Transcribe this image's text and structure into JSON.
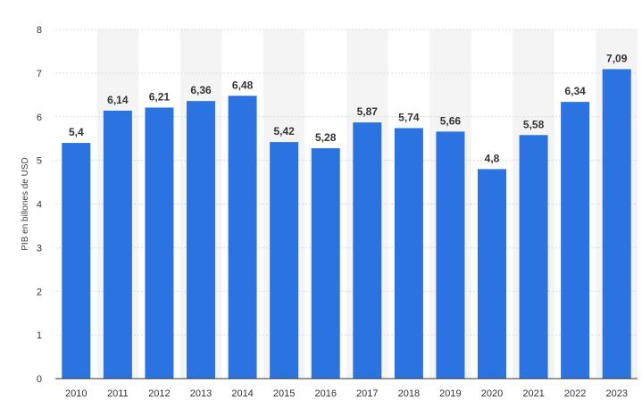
{
  "chart_data": {
    "type": "bar",
    "categories": [
      "2010",
      "2011",
      "2012",
      "2013",
      "2014",
      "2015",
      "2016",
      "2017",
      "2018",
      "2019",
      "2020",
      "2021",
      "2022",
      "2023"
    ],
    "values": [
      5.4,
      6.14,
      6.21,
      6.36,
      6.48,
      5.42,
      5.28,
      5.87,
      5.74,
      5.66,
      4.8,
      5.58,
      6.34,
      7.09
    ],
    "data_labels": [
      "5,4",
      "6,14",
      "6,21",
      "6,36",
      "6,48",
      "5,42",
      "5,28",
      "5,87",
      "5,74",
      "5,66",
      "4,8",
      "5,58",
      "6,34",
      "7,09"
    ],
    "title": "",
    "xlabel": "",
    "ylabel": "PIB en billones de USD",
    "ylim": [
      0,
      8
    ],
    "yticks": [
      0,
      1,
      2,
      3,
      4,
      5,
      6,
      7,
      8
    ],
    "grid": true,
    "colors": {
      "bar": "#2a73e0",
      "band": "#f4f4f4",
      "grid": "#d9d9d9",
      "baseline": "#333333"
    }
  }
}
